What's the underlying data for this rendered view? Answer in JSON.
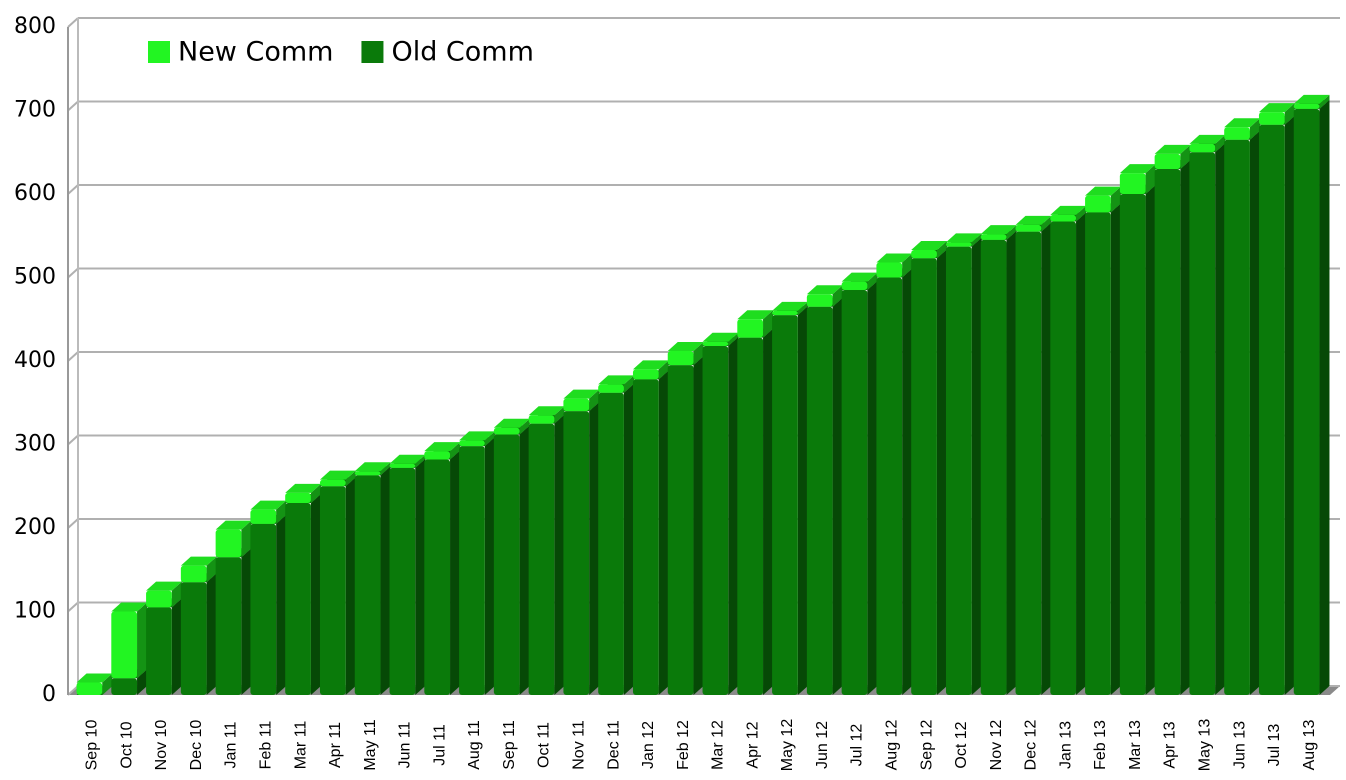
{
  "chart_data": {
    "type": "bar3d_stacked",
    "categories": [
      "Sep 10",
      "Oct 10",
      "Nov 10",
      "Dec 10",
      "Jan 11",
      "Feb 11",
      "Mar 11",
      "Apr 11",
      "May 11",
      "Jun 11",
      "Jul 11",
      "Aug 11",
      "Sep 11",
      "Oct 11",
      "Nov 11",
      "Dec 11",
      "Jan 12",
      "Feb 12",
      "Mar 12",
      "Apr 12",
      "May 12",
      "Jun 12",
      "Jul 12",
      "Aug 12",
      "Sep 12",
      "Oct 12",
      "Nov 12",
      "Dec 12",
      "Jan 13",
      "Feb 13",
      "Mar 13",
      "Apr 13",
      "May 13",
      "Jun 13",
      "Jul 13",
      "Aug 13"
    ],
    "series": [
      {
        "name": "New Comm",
        "color": "#22f522",
        "values": [
          15,
          80,
          20,
          20,
          33,
          17,
          12,
          8,
          5,
          5,
          10,
          7,
          8,
          10,
          15,
          10,
          12,
          17,
          5,
          22,
          5,
          15,
          10,
          18,
          10,
          5,
          7,
          8,
          8,
          20,
          25,
          18,
          10,
          15,
          15,
          6
        ]
      },
      {
        "name": "Old Comm",
        "color": "#0a7a0a",
        "values": [
          0,
          20,
          105,
          135,
          165,
          205,
          230,
          250,
          263,
          272,
          282,
          298,
          312,
          325,
          340,
          362,
          378,
          395,
          418,
          428,
          455,
          465,
          485,
          500,
          523,
          537,
          545,
          555,
          567,
          578,
          600,
          630,
          650,
          665,
          683,
          702
        ]
      }
    ],
    "stack_order": [
      "Old Comm",
      "New Comm"
    ],
    "ylim": [
      0,
      800
    ],
    "yticks": [
      0,
      100,
      200,
      300,
      400,
      500,
      600,
      700,
      800
    ],
    "grid": true,
    "legend": "top-left"
  }
}
